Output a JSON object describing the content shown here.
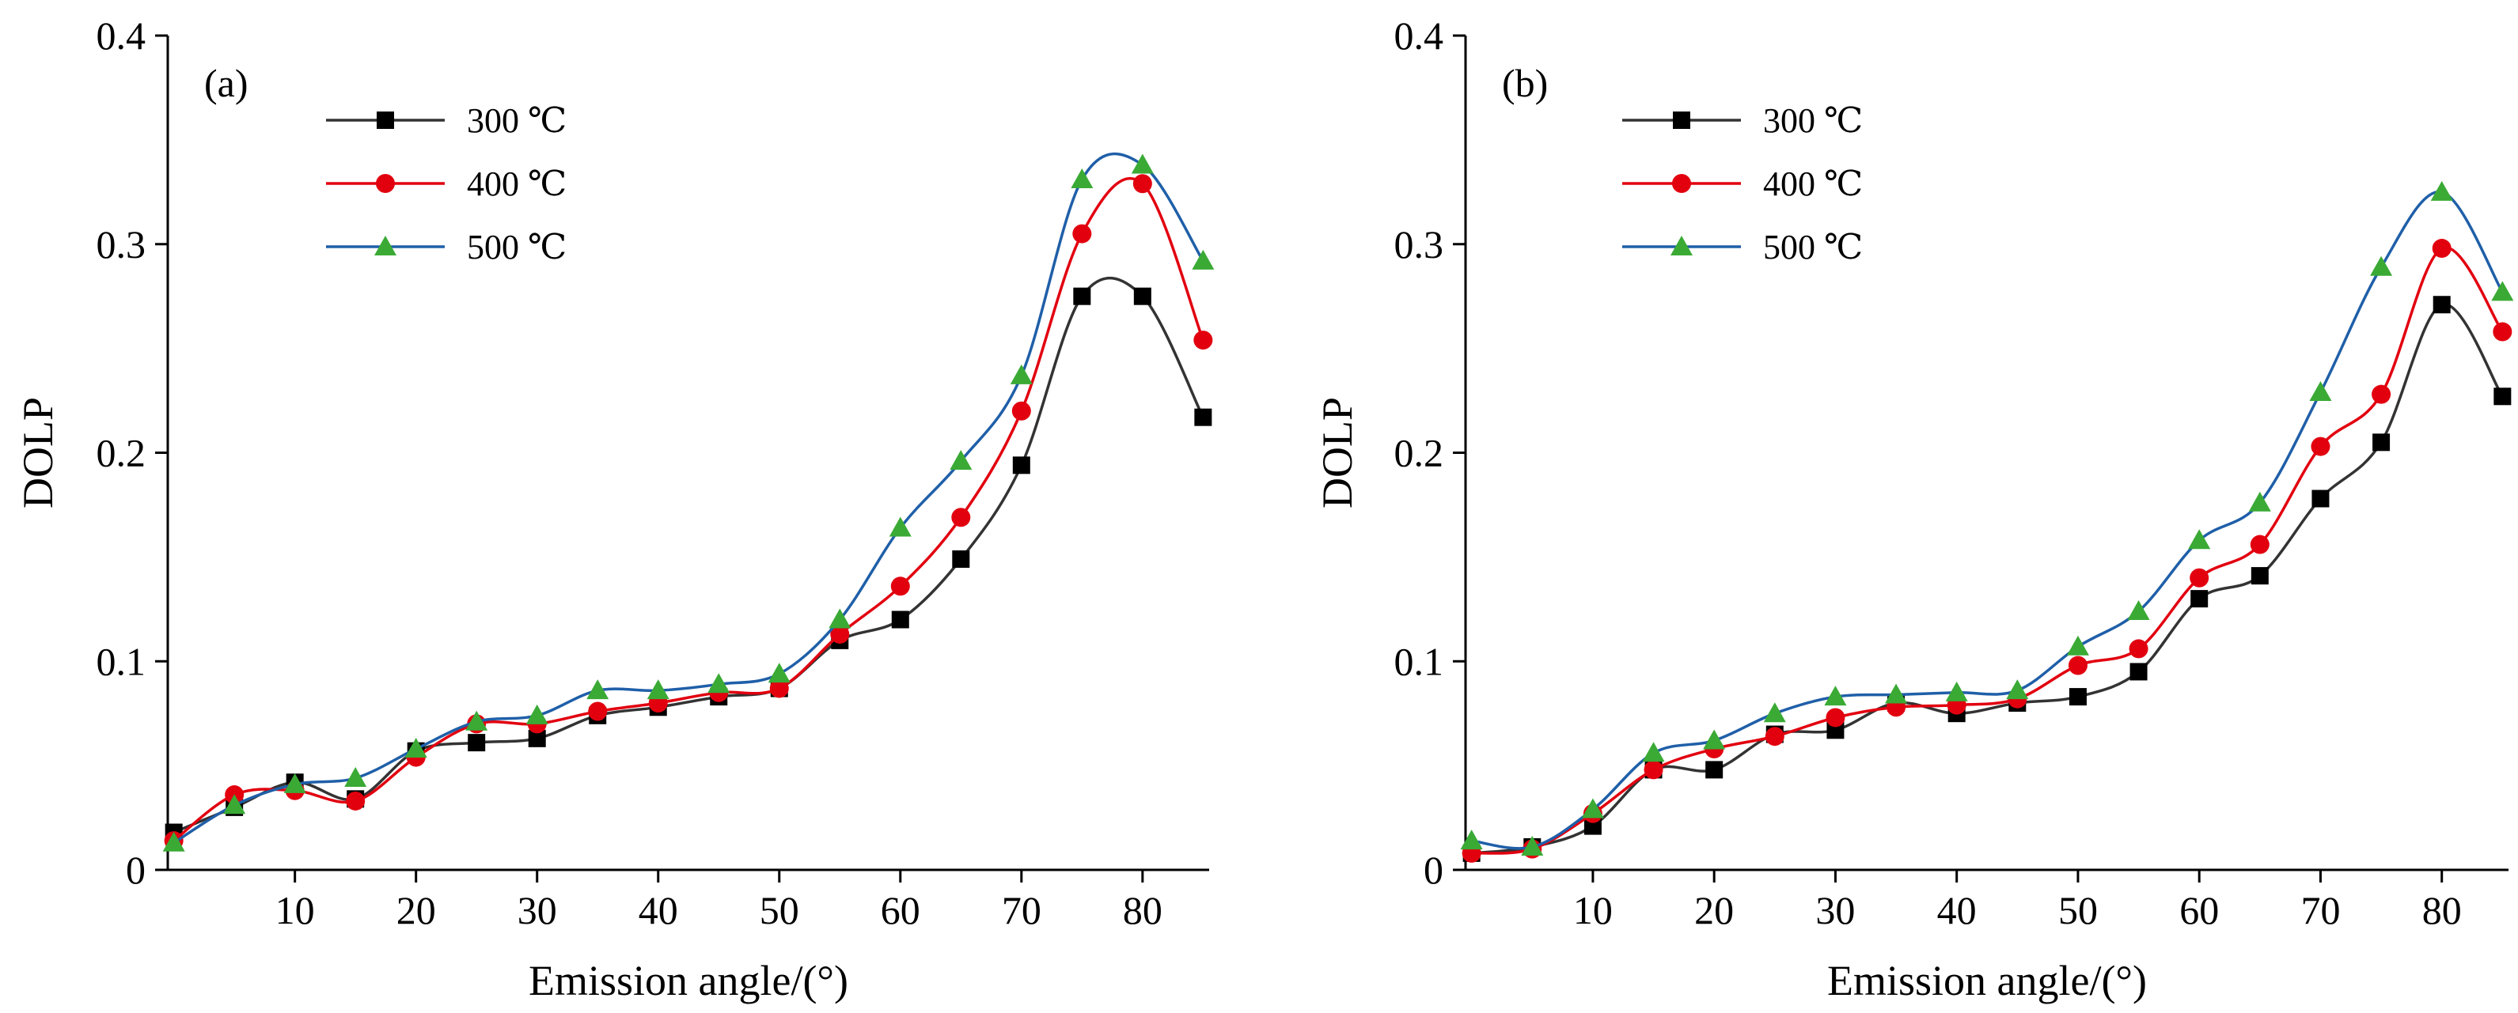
{
  "chart_data": [
    {
      "type": "line",
      "panel_label": "(a)",
      "xlabel": "Emission angle/(°)",
      "ylabel": "DOLP",
      "xlim": [
        -0.5,
        85.5
      ],
      "ylim": [
        0,
        0.4
      ],
      "xticks": [
        10,
        20,
        30,
        40,
        50,
        60,
        70,
        80
      ],
      "yticks": [
        0,
        0.1,
        0.2,
        0.3,
        0.4
      ],
      "ytick_labels": [
        "0",
        "0.1",
        "0.2",
        "0.3",
        "0.4"
      ],
      "legend_position": "top-left",
      "grid": false,
      "x": [
        0,
        5,
        10,
        15,
        20,
        25,
        30,
        35,
        40,
        45,
        50,
        55,
        60,
        65,
        70,
        75,
        80,
        85
      ],
      "series": [
        {
          "name": "300 ℃",
          "color": "#333333",
          "marker": "square",
          "values": [
            0.018,
            0.03,
            0.042,
            0.034,
            0.057,
            0.061,
            0.063,
            0.074,
            0.078,
            0.083,
            0.087,
            0.11,
            0.12,
            0.149,
            0.194,
            0.275,
            0.275,
            0.217
          ]
        },
        {
          "name": "400 ℃",
          "color": "#e2000f",
          "marker": "circle",
          "values": [
            0.014,
            0.036,
            0.038,
            0.033,
            0.054,
            0.07,
            0.07,
            0.076,
            0.08,
            0.085,
            0.087,
            0.113,
            0.136,
            0.169,
            0.22,
            0.305,
            0.329,
            0.254
          ]
        },
        {
          "name": "500 ℃",
          "color": "#1f5fa8",
          "marker": "triangle",
          "values": [
            0.013,
            0.031,
            0.041,
            0.044,
            0.058,
            0.071,
            0.074,
            0.086,
            0.086,
            0.089,
            0.094,
            0.12,
            0.164,
            0.196,
            0.237,
            0.331,
            0.338,
            0.292
          ]
        }
      ]
    },
    {
      "type": "line",
      "panel_label": "(b)",
      "xlabel": "Emission angle/(°)",
      "ylabel": "DOLP",
      "xlim": [
        -0.5,
        85.5
      ],
      "ylim": [
        0,
        0.4
      ],
      "xticks": [
        10,
        20,
        30,
        40,
        50,
        60,
        70,
        80
      ],
      "yticks": [
        0,
        0.1,
        0.2,
        0.3,
        0.4
      ],
      "ytick_labels": [
        "0",
        "0.1",
        "0.2",
        "0.3",
        "0.4"
      ],
      "legend_position": "top-left",
      "grid": false,
      "x": [
        0,
        5,
        10,
        15,
        20,
        25,
        30,
        35,
        40,
        45,
        50,
        55,
        60,
        65,
        70,
        75,
        80,
        85
      ],
      "series": [
        {
          "name": "300 ℃",
          "color": "#333333",
          "marker": "square",
          "values": [
            0.008,
            0.011,
            0.021,
            0.048,
            0.048,
            0.065,
            0.067,
            0.08,
            0.075,
            0.08,
            0.083,
            0.095,
            0.13,
            0.141,
            0.178,
            0.205,
            0.271,
            0.227
          ]
        },
        {
          "name": "400 ℃",
          "color": "#e2000f",
          "marker": "circle",
          "values": [
            0.008,
            0.01,
            0.027,
            0.048,
            0.058,
            0.064,
            0.073,
            0.078,
            0.079,
            0.082,
            0.098,
            0.106,
            0.14,
            0.156,
            0.203,
            0.228,
            0.298,
            0.258
          ]
        },
        {
          "name": "500 ℃",
          "color": "#1f5fa8",
          "marker": "triangle",
          "values": [
            0.014,
            0.011,
            0.029,
            0.056,
            0.062,
            0.075,
            0.083,
            0.084,
            0.085,
            0.086,
            0.107,
            0.124,
            0.158,
            0.176,
            0.229,
            0.289,
            0.325,
            0.277
          ]
        }
      ]
    }
  ]
}
